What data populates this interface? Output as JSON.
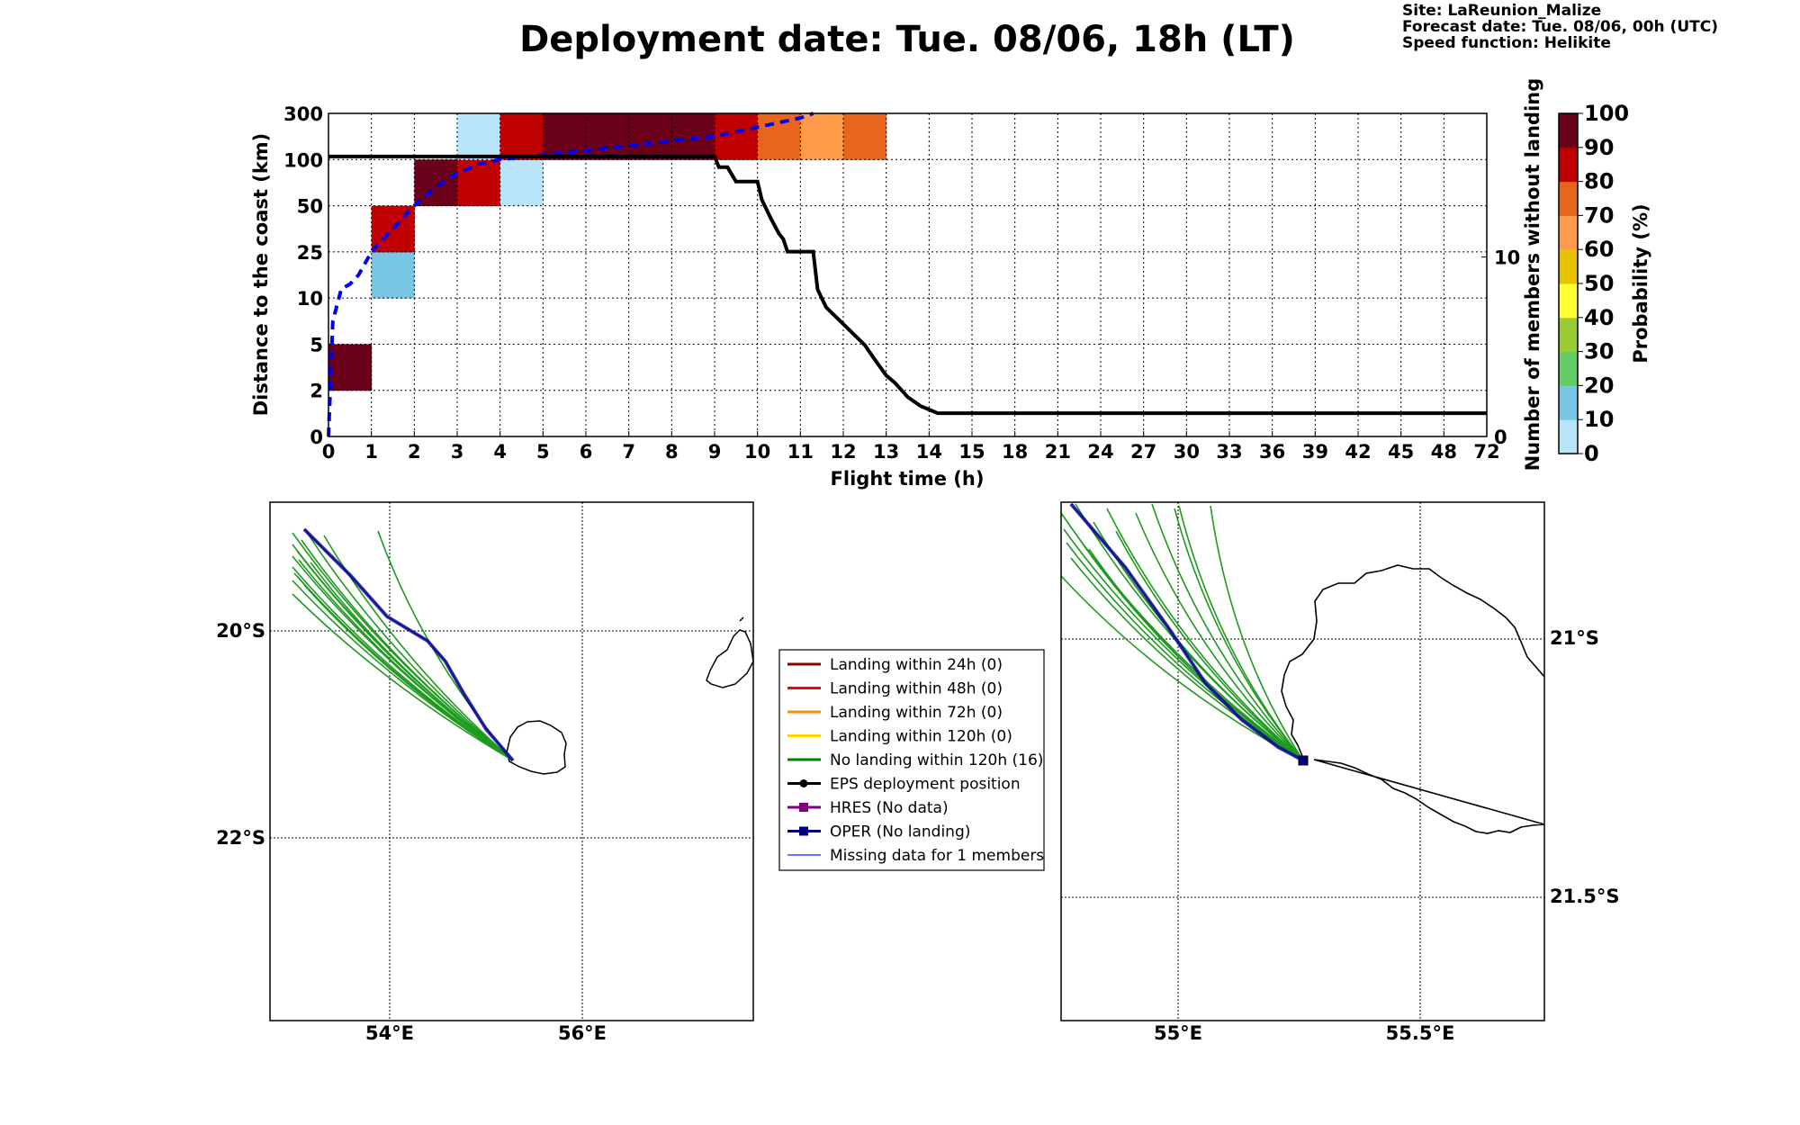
{
  "header": {
    "title": "Deployment date: Tue. 08/06, 18h (LT)",
    "site": "Site: LaReunion_Malize",
    "forecast": "Forecast date: Tue. 08/06, 00h (UTC)",
    "speed": "Speed function: Helikite"
  },
  "chart_data": [
    {
      "type": "heatmap",
      "xlabel": "Flight time (h)",
      "ylabel": "Distance to the coast (km)",
      "y2label": "Number of members without landing",
      "x_ticks": [
        "0",
        "1",
        "2",
        "3",
        "4",
        "5",
        "6",
        "7",
        "8",
        "9",
        "10",
        "11",
        "12",
        "13",
        "14",
        "15",
        "18",
        "21",
        "24",
        "27",
        "30",
        "33",
        "36",
        "39",
        "42",
        "45",
        "48",
        "72"
      ],
      "y_ticks": [
        "0",
        "2",
        "5",
        "10",
        "25",
        "50",
        "100",
        "300"
      ],
      "y2_ticks": [
        "0",
        "10"
      ],
      "y2lim": [
        0,
        18
      ],
      "grid": true,
      "cells": [
        {
          "x": 0,
          "y": 1,
          "p": 95
        },
        {
          "x": 1,
          "y": 3,
          "p": 15
        },
        {
          "x": 1,
          "y": 4,
          "p": 85
        },
        {
          "x": 2,
          "y": 5,
          "p": 95
        },
        {
          "x": 3,
          "y": 5,
          "p": 85
        },
        {
          "x": 3,
          "y": 6,
          "p": 5
        },
        {
          "x": 4,
          "y": 5,
          "p": 5
        },
        {
          "x": 4,
          "y": 6,
          "p": 85
        },
        {
          "x": 5,
          "y": 6,
          "p": 95
        },
        {
          "x": 6,
          "y": 6,
          "p": 95
        },
        {
          "x": 7,
          "y": 6,
          "p": 95
        },
        {
          "x": 8,
          "y": 6,
          "p": 95
        },
        {
          "x": 9,
          "y": 6,
          "p": 85
        },
        {
          "x": 10,
          "y": 6,
          "p": 75
        },
        {
          "x": 11,
          "y": 6,
          "p": 65
        },
        {
          "x": 12,
          "y": 6,
          "p": 75
        }
      ],
      "mean_distance_line": [
        [
          0,
          0
        ],
        [
          0.1,
          2.5
        ],
        [
          0.3,
          3.2
        ],
        [
          0.5,
          3.3
        ],
        [
          0.7,
          3.5
        ],
        [
          1,
          4
        ],
        [
          1.3,
          4.3
        ],
        [
          1.7,
          4.7
        ],
        [
          2,
          5
        ],
        [
          2.5,
          5.4
        ],
        [
          3,
          5.7
        ],
        [
          3.5,
          5.9
        ],
        [
          4,
          6
        ],
        [
          5,
          6.1
        ],
        [
          6,
          6.2
        ],
        [
          7,
          6.3
        ],
        [
          8,
          6.4
        ],
        [
          9,
          6.5
        ],
        [
          10,
          6.7
        ],
        [
          11,
          6.9
        ],
        [
          11.3,
          7
        ]
      ],
      "members_line": [
        [
          0,
          15.6
        ],
        [
          9,
          15.6
        ],
        [
          9.1,
          15
        ],
        [
          9.3,
          15
        ],
        [
          9.5,
          14.2
        ],
        [
          10,
          14.2
        ],
        [
          10.1,
          13.2
        ],
        [
          10.3,
          12.2
        ],
        [
          10.5,
          11.3
        ],
        [
          10.6,
          11
        ],
        [
          10.7,
          10.3
        ],
        [
          11.3,
          10.3
        ],
        [
          11.4,
          8.2
        ],
        [
          11.6,
          7.2
        ],
        [
          12.5,
          5.1
        ],
        [
          12.7,
          4.4
        ],
        [
          13,
          3.4
        ],
        [
          13.2,
          3
        ],
        [
          13.5,
          2.2
        ],
        [
          13.8,
          1.7
        ],
        [
          14.2,
          1.3
        ],
        [
          15,
          1.3
        ],
        [
          15.3,
          1.3
        ],
        [
          27,
          1.3
        ]
      ],
      "colorbar": {
        "label": "Probability (%)",
        "ticks": [
          "0",
          "10",
          "20",
          "30",
          "40",
          "50",
          "60",
          "70",
          "80",
          "90",
          "100"
        ],
        "colors": [
          "#b9e5fb",
          "#78c6e3",
          "#66cc66",
          "#99cc33",
          "#ffff33",
          "#e6c200",
          "#ff9a4a",
          "#e8661c",
          "#c00000",
          "#6b0019"
        ]
      }
    },
    {
      "type": "map",
      "name": "map-wide",
      "x_ticks": [
        "54°E",
        "56°E"
      ],
      "y_ticks": [
        "20°S",
        "22°S"
      ]
    },
    {
      "type": "map",
      "name": "map-zoom",
      "x_ticks": [
        "55°E",
        "55.5°E"
      ],
      "y_ticks": [
        "21°S",
        "21.5°S"
      ]
    }
  ],
  "legend": {
    "items": [
      {
        "label": "Landing within 24h (0)",
        "color": "#8b0000",
        "marker": "none"
      },
      {
        "label": "Landing within 48h (0)",
        "color": "#ff0000",
        "marker": "none"
      },
      {
        "label": "Landing within 72h (0)",
        "color": "#ff8c00",
        "marker": "none"
      },
      {
        "label": "Landing within 120h (0)",
        "color": "#ffd700",
        "marker": "none"
      },
      {
        "label": "No landing within 120h (16)",
        "color": "#008000",
        "marker": "none"
      },
      {
        "label": "EPS deployment position",
        "color": "#000000",
        "marker": "circle"
      },
      {
        "label": "HRES (No data)",
        "color": "#800080",
        "marker": "square"
      },
      {
        "label": "OPER (No landing)",
        "color": "#000080",
        "marker": "square"
      },
      {
        "label": "Missing data for 1 members",
        "color": "#4040ff",
        "marker": "none"
      }
    ]
  }
}
